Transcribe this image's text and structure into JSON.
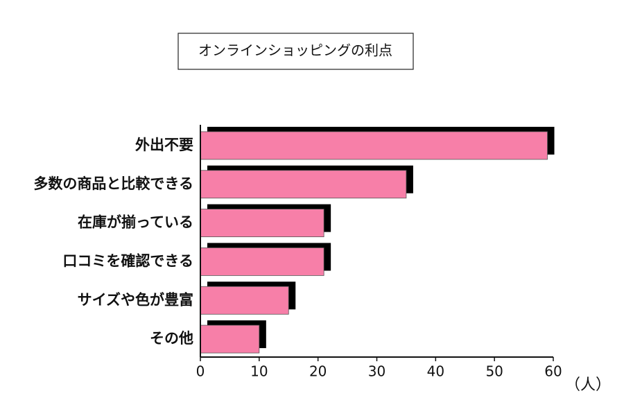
{
  "chart_data": {
    "type": "bar",
    "orientation": "horizontal",
    "title": "オンラインショッピングの利点",
    "categories": [
      "外出不要",
      "多数の商品と比較できる",
      "在庫が揃っている",
      "口コミを確認できる",
      "サイズや色が豊富",
      "その他"
    ],
    "values": [
      59,
      35,
      21,
      21,
      15,
      10
    ],
    "color": "#f77fa8",
    "shadow_color": "#000000",
    "xlim": [
      0,
      60
    ],
    "xticks": [
      0,
      10,
      20,
      30,
      40,
      50,
      60
    ],
    "unit_label": "（人）"
  }
}
